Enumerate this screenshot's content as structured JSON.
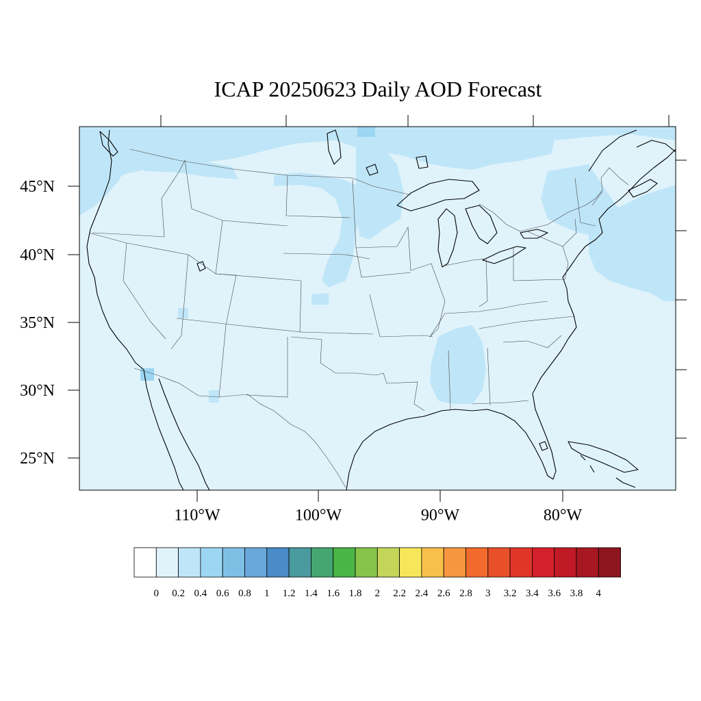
{
  "title": "ICAP 20250623 Daily AOD Forecast",
  "latitude_labels": [
    "45°N",
    "40°N",
    "35°N",
    "30°N",
    "25°N"
  ],
  "longitude_labels": [
    "110°W",
    "100°W",
    "90°W",
    "80°W"
  ],
  "colorbar": {
    "colors": [
      "#ffffff",
      "#e0f3fb",
      "#bfe6f8",
      "#9cd6f2",
      "#7fbfe6",
      "#6aa8dc",
      "#4a8bc8",
      "#4a9aa0",
      "#45a672",
      "#4ab547",
      "#86c54a",
      "#c3d65a",
      "#f8e65a",
      "#f8c04a",
      "#f6963e",
      "#f26a2e",
      "#e8502a",
      "#e0362a",
      "#d4202a",
      "#c01a26",
      "#a81822",
      "#8e161e"
    ],
    "labels": [
      "0",
      "0.2",
      "0.4",
      "0.6",
      "0.8",
      "1",
      "1.2",
      "1.4",
      "1.6",
      "1.8",
      "2",
      "2.2",
      "2.4",
      "2.6",
      "2.8",
      "3",
      "3.2",
      "3.4",
      "3.6",
      "3.8",
      "4"
    ]
  },
  "background_color": "#e0f3fb",
  "enhanced_color": "#bfe6f8",
  "peak_color": "#9cd6f2"
}
